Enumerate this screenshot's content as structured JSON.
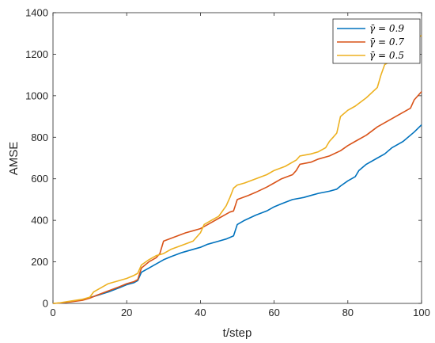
{
  "chart_data": {
    "type": "line",
    "xlabel": "t/step",
    "ylabel": "AMSE",
    "xlim": [
      0,
      100
    ],
    "ylim": [
      0,
      1400
    ],
    "xticks": [
      0,
      20,
      40,
      60,
      80,
      100
    ],
    "yticks": [
      0,
      200,
      400,
      600,
      800,
      1000,
      1200,
      1400
    ],
    "grid": false,
    "legend_position": "top-right",
    "series": [
      {
        "name": "γ̄ = 0.9",
        "legend_symbol": "γ̄",
        "legend_value": "= 0.9",
        "color": "#0072BD",
        "x": [
          0,
          2,
          5,
          8,
          10,
          12,
          15,
          18,
          20,
          22,
          23,
          24,
          26,
          28,
          30,
          32,
          35,
          38,
          40,
          42,
          45,
          47,
          49,
          50,
          52,
          55,
          58,
          60,
          62,
          65,
          68,
          70,
          72,
          75,
          77,
          78,
          80,
          82,
          83,
          85,
          88,
          90,
          92,
          95,
          98,
          100
        ],
        "y": [
          0,
          2,
          10,
          18,
          28,
          38,
          55,
          75,
          90,
          100,
          110,
          150,
          170,
          190,
          210,
          225,
          245,
          260,
          270,
          285,
          300,
          310,
          325,
          380,
          400,
          425,
          445,
          465,
          480,
          500,
          510,
          520,
          530,
          540,
          550,
          565,
          590,
          610,
          640,
          670,
          700,
          720,
          750,
          780,
          825,
          860
        ]
      },
      {
        "name": "γ̄ = 0.7",
        "legend_symbol": "γ̄",
        "legend_value": "= 0.7",
        "color": "#D95319",
        "x": [
          0,
          2,
          5,
          8,
          10,
          12,
          15,
          18,
          20,
          22,
          23,
          24,
          26,
          28,
          29,
          30,
          33,
          36,
          38,
          40,
          42,
          45,
          47,
          48,
          49,
          50,
          53,
          55,
          58,
          60,
          62,
          65,
          66,
          67,
          70,
          72,
          75,
          78,
          80,
          82,
          85,
          88,
          90,
          92,
          95,
          97,
          98,
          100
        ],
        "y": [
          0,
          2,
          8,
          15,
          25,
          40,
          60,
          80,
          95,
          105,
          115,
          170,
          200,
          220,
          240,
          300,
          320,
          340,
          350,
          360,
          380,
          410,
          430,
          440,
          445,
          500,
          520,
          535,
          560,
          580,
          600,
          620,
          640,
          670,
          680,
          695,
          710,
          735,
          760,
          780,
          810,
          850,
          870,
          890,
          920,
          940,
          980,
          1020
        ]
      },
      {
        "name": "γ̄ = 0.5",
        "legend_symbol": "γ̄",
        "legend_value": "= 0.5",
        "color": "#EDB120",
        "x": [
          0,
          2,
          5,
          8,
          10,
          11,
          13,
          15,
          17,
          20,
          22,
          23,
          24,
          26,
          28,
          30,
          32,
          35,
          38,
          40,
          41,
          43,
          45,
          47,
          48,
          49,
          50,
          52,
          55,
          58,
          60,
          63,
          65,
          66,
          67,
          70,
          72,
          74,
          75,
          76,
          77,
          78,
          80,
          82,
          85,
          88,
          89,
          90,
          92,
          95,
          97,
          98,
          100
        ],
        "y": [
          0,
          3,
          12,
          20,
          30,
          55,
          75,
          95,
          105,
          120,
          135,
          145,
          185,
          210,
          230,
          240,
          260,
          280,
          300,
          340,
          380,
          400,
          420,
          470,
          510,
          555,
          570,
          580,
          600,
          620,
          640,
          660,
          680,
          690,
          710,
          720,
          730,
          750,
          780,
          800,
          820,
          900,
          930,
          950,
          990,
          1040,
          1100,
          1150,
          1170,
          1200,
          1230,
          1270,
          1290
        ]
      }
    ]
  }
}
